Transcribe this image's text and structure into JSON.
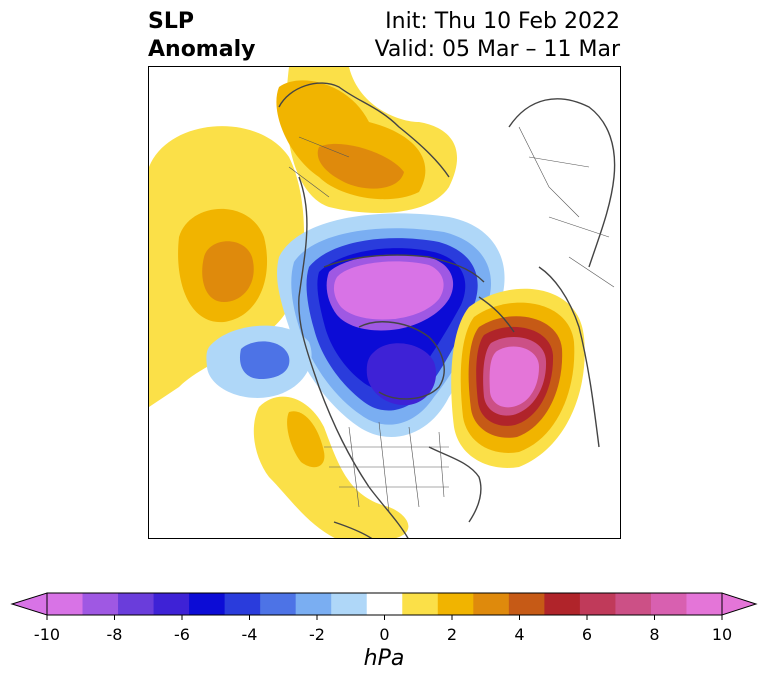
{
  "title": {
    "left_line1": "SLP",
    "left_line2": "Anomaly",
    "right_line1": "Init: Thu 10 Feb 2022",
    "right_line2": "Valid: 05 Mar – 11 Mar"
  },
  "colorbar": {
    "unit": "hPa",
    "ticks": [
      "-10",
      "-8",
      "-6",
      "-4",
      "-2",
      "0",
      "2",
      "4",
      "6",
      "8",
      "10"
    ],
    "colors": [
      "#d873e6",
      "#9f58e3",
      "#6a3ddb",
      "#3e22d6",
      "#0c0cd6",
      "#2a3cdc",
      "#4d73e6",
      "#7aaef2",
      "#afd7f8",
      "#ffffff",
      "#fbe048",
      "#f1b400",
      "#df8a0c",
      "#c65a16",
      "#b0242a",
      "#c03a5a",
      "#cc5086",
      "#d860b0",
      "#e475d8"
    ],
    "extend_low": "#d873e6",
    "extend_high": "#e475d8"
  },
  "map": {
    "projection": "north-polar-stereographic",
    "field": "sea level pressure anomaly"
  }
}
